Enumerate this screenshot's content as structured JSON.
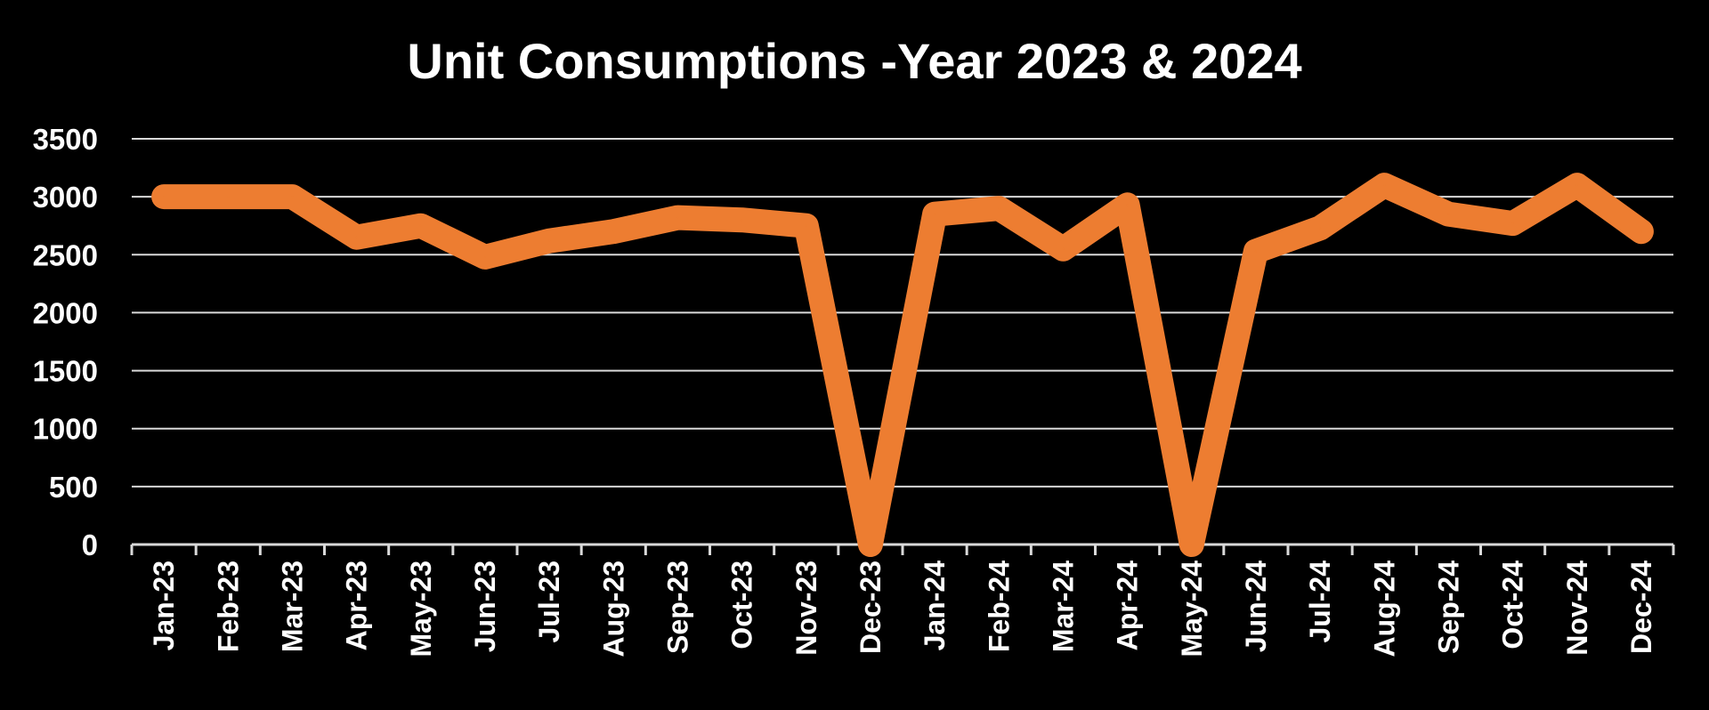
{
  "chart_data": {
    "type": "line",
    "title": "Unit Consumptions -Year 2023 & 2024",
    "xlabel": "",
    "ylabel": "",
    "categories": [
      "Jan-23",
      "Feb-23",
      "Mar-23",
      "Apr-23",
      "May-23",
      "Jun-23",
      "Jul-23",
      "Aug-23",
      "Sep-23",
      "Oct-23",
      "Nov-23",
      "Dec-23",
      "Jan-24",
      "Feb-24",
      "Mar-24",
      "Apr-24",
      "May-24",
      "Jun-24",
      "Jul-24",
      "Aug-24",
      "Sep-24",
      "Oct-24",
      "Nov-24",
      "Dec-24"
    ],
    "series": [
      {
        "values": [
          3000,
          3000,
          3000,
          2650,
          2750,
          2480,
          2620,
          2700,
          2820,
          2800,
          2750,
          0,
          2850,
          2900,
          2550,
          2930,
          0,
          2530,
          2730,
          3100,
          2850,
          2770,
          3100,
          2700
        ]
      }
    ],
    "ylim": [
      0,
      3500
    ],
    "yticks": [
      0,
      500,
      1000,
      1500,
      2000,
      2500,
      3000,
      3500
    ],
    "grid": true,
    "legend": "none",
    "colors": {
      "background": "#000000",
      "line": "#ED7D31",
      "grid": "#D9D9D9",
      "text": "#FFFFFF"
    }
  }
}
